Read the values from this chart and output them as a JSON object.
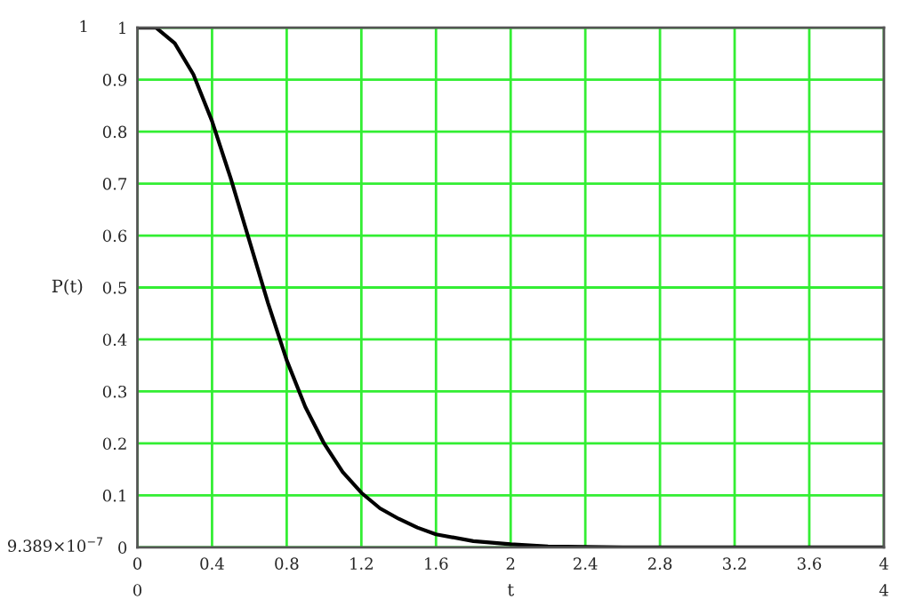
{
  "chart_data": {
    "type": "line",
    "xlabel": "t",
    "ylabel": "P(t)",
    "x": [
      0,
      0.1,
      0.2,
      0.3,
      0.4,
      0.5,
      0.6,
      0.7,
      0.8,
      0.9,
      1.0,
      1.1,
      1.2,
      1.3,
      1.4,
      1.5,
      1.6,
      1.8,
      2.0,
      2.2,
      2.6,
      3.0,
      3.5,
      4.0
    ],
    "series": [
      {
        "color": "#000000",
        "values": [
          1,
          1.0,
          0.97,
          0.91,
          0.82,
          0.71,
          0.59,
          0.47,
          0.36,
          0.27,
          0.2,
          0.145,
          0.105,
          0.075,
          0.055,
          0.038,
          0.025,
          0.012,
          0.006,
          0.002,
          0,
          0,
          0,
          0
        ]
      }
    ],
    "xlim": [
      0,
      4
    ],
    "xticks": [
      0,
      0.4,
      0.8,
      1.2,
      1.6,
      2,
      2.4,
      2.8,
      3.2,
      3.6,
      4
    ],
    "ylim": [
      0,
      1
    ],
    "yticks": [
      0,
      0.1,
      0.2,
      0.3,
      0.4,
      0.5,
      0.6,
      0.7,
      0.8,
      0.9,
      1
    ],
    "grid": true,
    "marker": "none",
    "line_style": "solid",
    "annotations": [
      "1",
      "9.389×10$^{−7}$",
      "0",
      "4"
    ]
  }
}
